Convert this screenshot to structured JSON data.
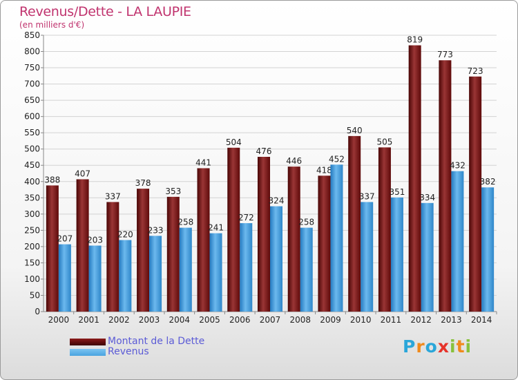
{
  "header": {
    "title": "Revenus/Dette - LA LAUPIE",
    "subtitle": "(en milliers d'€)"
  },
  "logo": {
    "text": "Proxiti",
    "letters": [
      {
        "ch": "P",
        "color": "#2aa6d9"
      },
      {
        "ch": "r",
        "color": "#f08a1c"
      },
      {
        "ch": "o",
        "color": "#2aa6d9"
      },
      {
        "ch": "x",
        "color": "#e6332a"
      },
      {
        "ch": "i",
        "color": "#88c13c"
      },
      {
        "ch": "t",
        "color": "#f08a1c"
      },
      {
        "ch": "i",
        "color": "#88c13c"
      }
    ]
  },
  "chart_data": {
    "type": "bar",
    "title": "Revenus/Dette - LA LAUPIE",
    "subtitle": "(en milliers d'€)",
    "categories": [
      "2000",
      "2001",
      "2002",
      "2003",
      "2004",
      "2005",
      "2006",
      "2007",
      "2008",
      "2009",
      "2010",
      "2011",
      "2012",
      "2013",
      "2014"
    ],
    "series": [
      {
        "name": "Montant de la Dette",
        "color": "#8b1a1a",
        "values": [
          388,
          407,
          337,
          378,
          353,
          441,
          504,
          476,
          446,
          418,
          540,
          505,
          819,
          773,
          723
        ]
      },
      {
        "name": "Revenus",
        "color": "#4aa3df",
        "values": [
          207,
          203,
          220,
          233,
          258,
          241,
          272,
          324,
          258,
          452,
          337,
          351,
          334,
          432,
          382
        ]
      }
    ],
    "ylim": [
      0,
      850
    ],
    "ytick_step": 50,
    "grid": true,
    "legend_position": "bottom-left",
    "show_data_labels": true
  }
}
